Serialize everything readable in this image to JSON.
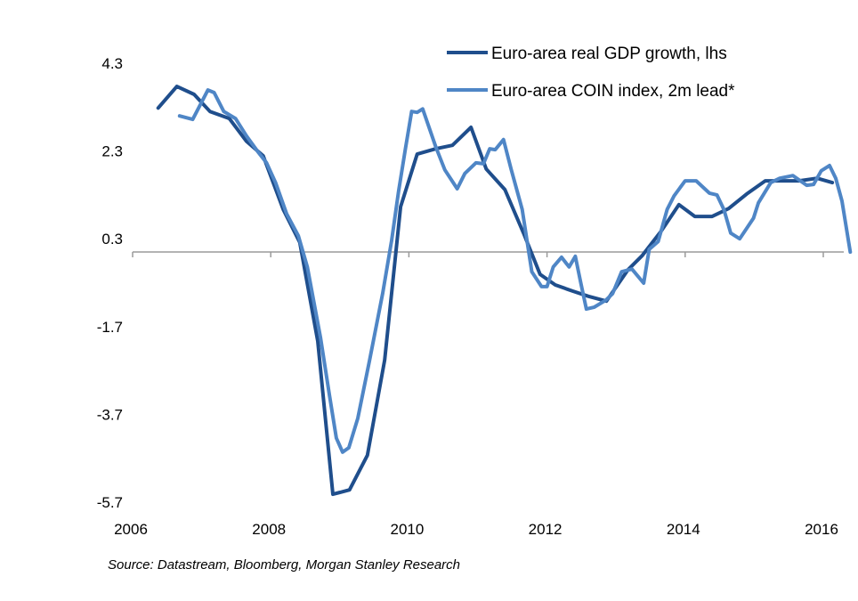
{
  "chart_data": {
    "type": "line",
    "title": "",
    "xlabel": "",
    "ylabel": "",
    "xlim": [
      2006,
      2016.3
    ],
    "ylim": [
      -5.7,
      4.3
    ],
    "x_ticks": [
      "2006",
      "2008",
      "2010",
      "2012",
      "2014",
      "2016"
    ],
    "y_ticks": [
      "4.3",
      "2.3",
      "0.3",
      "-1.7",
      "-3.7",
      "-5.7"
    ],
    "y_tick_values": [
      4.3,
      2.3,
      0.3,
      -1.7,
      -3.7,
      -5.7
    ],
    "x_tick_values": [
      2006,
      2008,
      2010,
      2012,
      2014,
      2016
    ],
    "grid": false,
    "legend_position": "top-right",
    "series": [
      {
        "name": "Euro-area real GDP growth, lhs",
        "color": "#1f4e8c",
        "x": [
          2006.37,
          2006.64,
          2006.89,
          2007.12,
          2007.4,
          2007.65,
          2007.89,
          2008.18,
          2008.42,
          2008.68,
          2008.9,
          2009.14,
          2009.4,
          2009.65,
          2009.88,
          2010.12,
          2010.39,
          2010.63,
          2010.9,
          2011.12,
          2011.39,
          2011.66,
          2011.9,
          2012.12,
          2012.37,
          2012.6,
          2012.86,
          2013.17,
          2013.38,
          2013.66,
          2013.91,
          2014.14,
          2014.39,
          2014.63,
          2014.89,
          2015.16,
          2015.42,
          2015.65,
          2015.91,
          2016.13
        ],
        "values": [
          3.28,
          3.77,
          3.59,
          3.2,
          3.04,
          2.52,
          2.19,
          0.97,
          0.22,
          -2.03,
          -5.52,
          -5.42,
          -4.63,
          -2.46,
          1.03,
          2.23,
          2.35,
          2.43,
          2.84,
          1.89,
          1.42,
          0.43,
          -0.51,
          -0.75,
          -0.89,
          -1.01,
          -1.12,
          -0.41,
          -0.08,
          0.49,
          1.08,
          0.81,
          0.81,
          0.99,
          1.32,
          1.62,
          1.62,
          1.62,
          1.68,
          1.58
        ]
      },
      {
        "name": "Euro-area COIN index, 2m lead*",
        "color": "#4f86c6",
        "x": [
          2006.68,
          2006.87,
          2007.09,
          2007.18,
          2007.32,
          2007.49,
          2007.65,
          2007.81,
          2007.94,
          2008.07,
          2008.23,
          2008.4,
          2008.53,
          2008.72,
          2008.85,
          2008.95,
          2009.04,
          2009.13,
          2009.26,
          2009.43,
          2009.62,
          2009.75,
          2009.85,
          2009.95,
          2010.04,
          2010.12,
          2010.2,
          2010.39,
          2010.52,
          2010.7,
          2010.81,
          2010.97,
          2011.08,
          2011.17,
          2011.25,
          2011.37,
          2011.48,
          2011.64,
          2011.78,
          2011.92,
          2012.0,
          2012.09,
          2012.21,
          2012.32,
          2012.41,
          2012.49,
          2012.57,
          2012.68,
          2012.85,
          2012.95,
          2013.08,
          2013.23,
          2013.4,
          2013.48,
          2013.61,
          2013.74,
          2013.84,
          2014.0,
          2014.16,
          2014.35,
          2014.46,
          2014.56,
          2014.66,
          2014.79,
          2014.99,
          2015.06,
          2015.24,
          2015.37,
          2015.56,
          2015.76,
          2015.86,
          2015.97,
          2016.09,
          2016.18,
          2016.27,
          2016.39
        ],
        "values": [
          3.1,
          3.02,
          3.69,
          3.63,
          3.2,
          3.04,
          2.64,
          2.29,
          2.03,
          1.58,
          0.87,
          0.37,
          -0.34,
          -1.95,
          -3.27,
          -4.24,
          -4.56,
          -4.46,
          -3.79,
          -2.47,
          -0.95,
          0.26,
          1.38,
          2.35,
          3.2,
          3.18,
          3.26,
          2.39,
          1.87,
          1.44,
          1.79,
          2.03,
          2.01,
          2.35,
          2.33,
          2.56,
          1.89,
          0.97,
          -0.45,
          -0.79,
          -0.79,
          -0.34,
          -0.12,
          -0.34,
          -0.1,
          -0.71,
          -1.3,
          -1.26,
          -1.1,
          -0.95,
          -0.45,
          -0.39,
          -0.71,
          0.06,
          0.24,
          0.97,
          1.28,
          1.62,
          1.62,
          1.34,
          1.3,
          0.97,
          0.43,
          0.3,
          0.77,
          1.12,
          1.58,
          1.68,
          1.74,
          1.52,
          1.54,
          1.85,
          1.97,
          1.68,
          1.16,
          0.0
        ]
      }
    ],
    "source": "Source: Datastream,  Bloomberg, Morgan Stanley Research"
  },
  "legend": [
    {
      "label": "Euro-area real GDP growth, lhs",
      "color": "#1f4e8c"
    },
    {
      "label": "Euro-area COIN index, 2m lead*",
      "color": "#4f86c6"
    }
  ],
  "source_note": "Source: Datastream,  Bloomberg, Morgan Stanley Research"
}
